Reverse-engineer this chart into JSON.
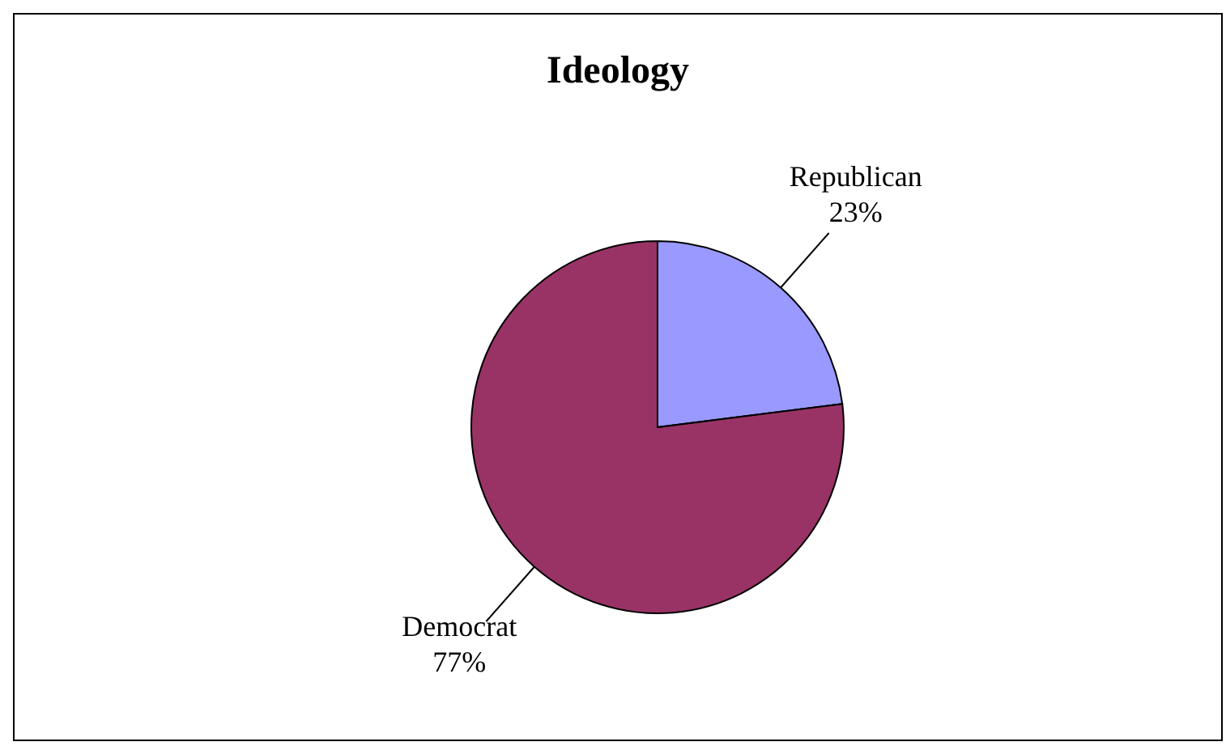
{
  "chart_data": {
    "type": "pie",
    "title": "Ideology",
    "categories": [
      "Republican",
      "Democrat"
    ],
    "values": [
      23,
      77
    ],
    "colors": [
      "#9999ff",
      "#993366"
    ],
    "value_labels": [
      "23%",
      "77%"
    ],
    "legend": false
  }
}
